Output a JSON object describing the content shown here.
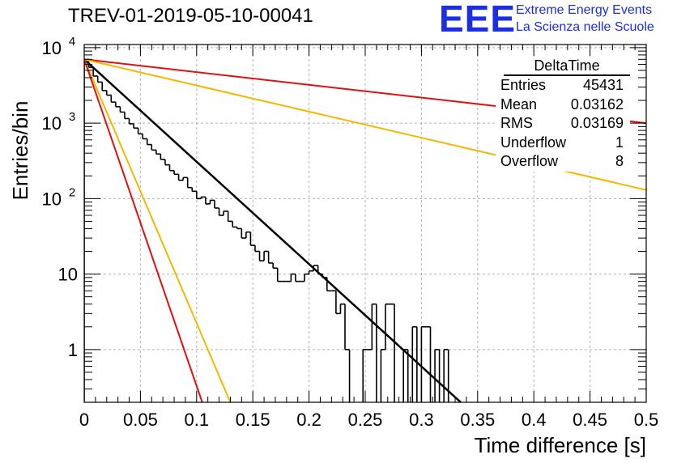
{
  "header": {
    "title": "TREV-01-2019-05-10-00041",
    "logo_mark": "EEE",
    "logo_line1": "Extreme Energy Events",
    "logo_line2": "La Scienza nelle Scuole"
  },
  "stats": {
    "title": "DeltaTime",
    "rows": [
      {
        "label": "Entries",
        "value": "45431"
      },
      {
        "label": "Mean",
        "value": "0.03162"
      },
      {
        "label": "RMS",
        "value": "0.03169"
      },
      {
        "label": "Underflow",
        "value": "1"
      },
      {
        "label": "Overflow",
        "value": "8"
      }
    ]
  },
  "colors": {
    "histogram": "#000000",
    "fit": "#000000",
    "red_lines": "#e01010",
    "orange_lines": "#f2b800",
    "grid": "#b0b0b0"
  },
  "chart_data": {
    "type": "line",
    "title": "TREV-01-2019-05-10-00041",
    "xlabel": "Time difference [s]",
    "ylabel": "Entries/bin",
    "xlim": [
      0,
      0.5
    ],
    "ylim": [
      0.2,
      11000
    ],
    "yscale": "log",
    "grid": true,
    "x_ticks": [
      "0",
      "0.05",
      "0.1",
      "0.15",
      "0.2",
      "0.25",
      "0.3",
      "0.35",
      "0.4",
      "0.45",
      "0.5"
    ],
    "y_ticks": [
      {
        "value": 1,
        "label": "1"
      },
      {
        "value": 10,
        "label": "10"
      },
      {
        "value": 100,
        "label": "10",
        "exp": "2"
      },
      {
        "value": 1000,
        "label": "10",
        "exp": "3"
      },
      {
        "value": 10000,
        "label": "10",
        "exp": "4"
      }
    ],
    "histogram": {
      "bin_width": 0.004,
      "x_start": 0,
      "counts": [
        7000,
        5500,
        4200,
        3500,
        2700,
        2350,
        1900,
        1650,
        1400,
        1150,
        980,
        860,
        720,
        620,
        520,
        440,
        390,
        330,
        280,
        235,
        210,
        175,
        190,
        140,
        125,
        100,
        105,
        85,
        95,
        75,
        60,
        68,
        50,
        42,
        40,
        30,
        36,
        24,
        20,
        15,
        20,
        14,
        12,
        8,
        8,
        8,
        10,
        8,
        8,
        10,
        11,
        13,
        10,
        9,
        6,
        6,
        3,
        4,
        1,
        0,
        0,
        0,
        1,
        1,
        4,
        0,
        1,
        4,
        4,
        0,
        0,
        1,
        0,
        2,
        0,
        2,
        2,
        0,
        1,
        0,
        1,
        0,
        0,
        0,
        0,
        0,
        0,
        0,
        0,
        0,
        0,
        0,
        0,
        0,
        0,
        0,
        0,
        0,
        0,
        0,
        0,
        0,
        0,
        0,
        0,
        0,
        0,
        0,
        0,
        0,
        0,
        0,
        0,
        0,
        0,
        0,
        0,
        0,
        0,
        0,
        0,
        0,
        0,
        0,
        0
      ]
    },
    "series": [
      {
        "color": "#000000",
        "width": 2.5,
        "points": [
          [
            0,
            7000
          ],
          [
            0.335,
            0.2
          ]
        ]
      },
      {
        "color": "#e01010",
        "width": 2,
        "points": [
          [
            0,
            7000
          ],
          [
            0.5,
            1000
          ]
        ]
      },
      {
        "color": "#f2b800",
        "width": 2,
        "points": [
          [
            0,
            7000
          ],
          [
            0.5,
            130
          ]
        ]
      },
      {
        "color": "#f2b800",
        "width": 2,
        "points": [
          [
            0,
            7000
          ],
          [
            0.13,
            0.2
          ]
        ]
      },
      {
        "color": "#e01010",
        "width": 2,
        "points": [
          [
            0,
            7000
          ],
          [
            0.105,
            0.2
          ]
        ]
      }
    ]
  }
}
